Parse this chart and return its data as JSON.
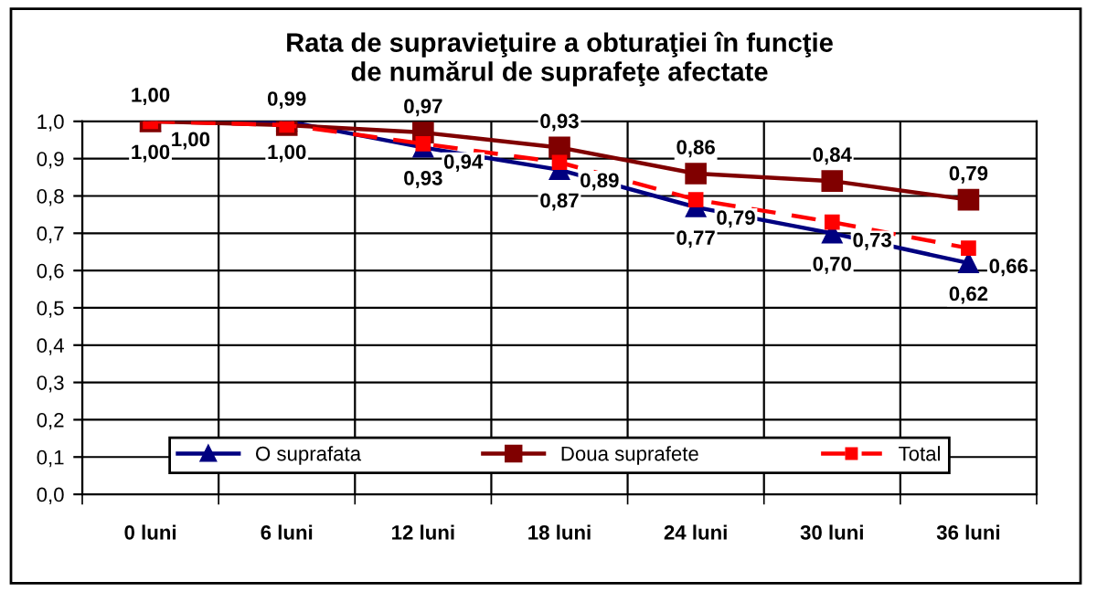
{
  "chart_data": {
    "type": "line",
    "title": "Rata de supravieţuire a obturaţiei în funcţie\nde numărul de suprafeţe afectate",
    "categories": [
      "0 luni",
      "6 luni",
      "12 luni",
      "18 luni",
      "24 luni",
      "30 luni",
      "36 luni"
    ],
    "series": [
      {
        "name": "O suprafata",
        "color": "#000080",
        "marker": "triangle",
        "line_style": "solid",
        "values": [
          1.0,
          1.0,
          0.93,
          0.87,
          0.77,
          0.7,
          0.62
        ],
        "value_labels": [
          "1,00",
          "1,00",
          "0,93",
          "0,87",
          "0,77",
          "0,70",
          "0,62"
        ]
      },
      {
        "name": "Doua suprafete",
        "color": "#800000",
        "marker": "square",
        "line_style": "solid",
        "values": [
          1.0,
          0.99,
          0.97,
          0.93,
          0.86,
          0.84,
          0.79
        ],
        "value_labels": [
          "1,00",
          "0,99",
          "0,97",
          "0,93",
          "0,86",
          "0,84",
          "0,79"
        ]
      },
      {
        "name": "Total",
        "color": "#ff0000",
        "marker": "square",
        "line_style": "dashed",
        "values": [
          1.0,
          0.99,
          0.94,
          0.89,
          0.79,
          0.73,
          0.66
        ],
        "value_labels": [
          "1,00",
          null,
          "0,94",
          "0,89",
          "0,79",
          "0,73",
          "0,66"
        ]
      }
    ],
    "ylim": [
      0,
      1.0
    ],
    "yticks": [
      {
        "value": 0,
        "label": "0,0"
      },
      {
        "value": 0.1,
        "label": "0,1"
      },
      {
        "value": 0.2,
        "label": "0,2"
      },
      {
        "value": 0.3,
        "label": "0,3"
      },
      {
        "value": 0.4,
        "label": "0,4"
      },
      {
        "value": 0.5,
        "label": "0,5"
      },
      {
        "value": 0.6,
        "label": "0,6"
      },
      {
        "value": 0.7,
        "label": "0,7"
      },
      {
        "value": 0.8,
        "label": "0,8"
      },
      {
        "value": 0.9,
        "label": "0,9"
      },
      {
        "value": 1.0,
        "label": "1,0"
      }
    ],
    "grid": true,
    "legend": "bottom"
  }
}
